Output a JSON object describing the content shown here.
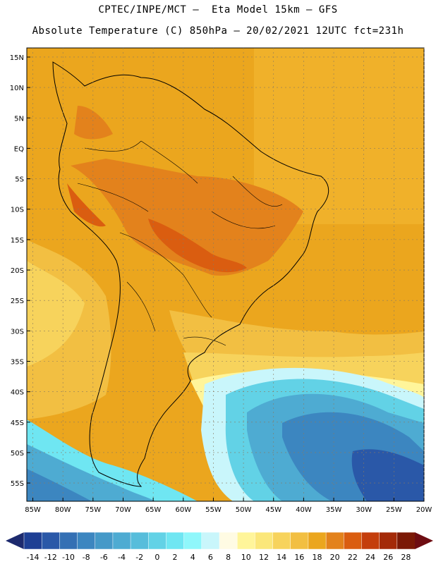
{
  "header": {
    "line1": "CPTEC/INPE/MCT –  Eta Model 15km – GFS",
    "line2": "Absolute Temperature (C) 850hPa – 20/02/2021 12UTC fct=231h"
  },
  "map": {
    "lat_labels": [
      "15N",
      "10N",
      "5N",
      "EQ",
      "5S",
      "10S",
      "15S",
      "20S",
      "25S",
      "30S",
      "35S",
      "40S",
      "45S",
      "50S",
      "55S"
    ],
    "lon_labels": [
      "85W",
      "80W",
      "75W",
      "70W",
      "65W",
      "60W",
      "55W",
      "50W",
      "45W",
      "40W",
      "35W",
      "30W",
      "25W",
      "20W"
    ],
    "extent": {
      "lon_min": -86,
      "lon_max": -20,
      "lat_min": -58,
      "lat_max": 16.5
    }
  },
  "colorbar": {
    "labels": [
      "-14",
      "-12",
      "-10",
      "-8",
      "-6",
      "-4",
      "-2",
      "0",
      "2",
      "4",
      "6",
      "8",
      "10",
      "12",
      "14",
      "16",
      "18",
      "20",
      "22",
      "24",
      "26",
      "28"
    ],
    "colors": [
      "#1e3f94",
      "#2a58a8",
      "#3470b4",
      "#3c86c0",
      "#4599c8",
      "#4eabd2",
      "#57bddb",
      "#62d2e6",
      "#6fe6f2",
      "#8ff7fb",
      "#c9f6fb",
      "#fffbe3",
      "#fff59a",
      "#fbe77a",
      "#f7d35c",
      "#f2bf42",
      "#eba61e",
      "#e3821c",
      "#da5d10",
      "#c43e0c",
      "#a42a08",
      "#7b1906"
    ],
    "left_arrow_color": "#1d2a6e",
    "right_arrow_color": "#6e0d12"
  }
}
